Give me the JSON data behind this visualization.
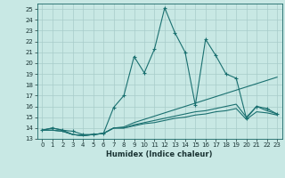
{
  "xlabel": "Humidex (Indice chaleur)",
  "xlim": [
    -0.5,
    23.5
  ],
  "ylim": [
    13,
    25.5
  ],
  "yticks": [
    13,
    14,
    15,
    16,
    17,
    18,
    19,
    20,
    21,
    22,
    23,
    24,
    25
  ],
  "xticks": [
    0,
    1,
    2,
    3,
    4,
    5,
    6,
    7,
    8,
    9,
    10,
    11,
    12,
    13,
    14,
    15,
    16,
    17,
    18,
    19,
    20,
    21,
    22,
    23
  ],
  "bg_color": "#c8e8e4",
  "grid_color": "#a8ccca",
  "line_color": "#1a7070",
  "lines": [
    {
      "x": [
        0,
        1,
        2,
        3,
        4,
        5,
        6,
        7,
        8,
        9,
        10,
        11,
        12,
        13,
        14,
        15,
        16,
        17,
        18,
        19,
        20,
        21,
        22,
        23
      ],
      "y": [
        13.8,
        14.0,
        13.8,
        13.7,
        13.4,
        13.4,
        13.5,
        15.9,
        17.0,
        20.6,
        19.1,
        21.3,
        25.1,
        22.8,
        21.0,
        16.1,
        22.2,
        20.7,
        19.0,
        18.6,
        14.9,
        16.0,
        15.8,
        15.3
      ],
      "marker": true
    },
    {
      "x": [
        0,
        1,
        2,
        3,
        4,
        5,
        6,
        7,
        8,
        9,
        10,
        11,
        12,
        13,
        14,
        15,
        16,
        17,
        18,
        19,
        20,
        21,
        22,
        23
      ],
      "y": [
        13.8,
        14.0,
        13.8,
        13.4,
        13.3,
        13.4,
        13.5,
        14.0,
        14.1,
        14.5,
        14.8,
        15.1,
        15.4,
        15.7,
        16.0,
        16.3,
        16.6,
        16.9,
        17.2,
        17.5,
        17.8,
        18.1,
        18.4,
        18.7
      ],
      "marker": false
    },
    {
      "x": [
        0,
        1,
        2,
        3,
        4,
        5,
        6,
        7,
        8,
        9,
        10,
        11,
        12,
        13,
        14,
        15,
        16,
        17,
        18,
        19,
        20,
        21,
        22,
        23
      ],
      "y": [
        13.8,
        13.8,
        13.7,
        13.4,
        13.3,
        13.4,
        13.5,
        14.0,
        14.0,
        14.3,
        14.5,
        14.7,
        14.9,
        15.1,
        15.3,
        15.5,
        15.6,
        15.8,
        16.0,
        16.2,
        15.0,
        16.0,
        15.6,
        15.3
      ],
      "marker": false
    },
    {
      "x": [
        0,
        1,
        2,
        3,
        4,
        5,
        6,
        7,
        8,
        9,
        10,
        11,
        12,
        13,
        14,
        15,
        16,
        17,
        18,
        19,
        20,
        21,
        22,
        23
      ],
      "y": [
        13.8,
        13.8,
        13.7,
        13.4,
        13.3,
        13.4,
        13.5,
        14.0,
        14.0,
        14.2,
        14.4,
        14.5,
        14.7,
        14.9,
        15.0,
        15.2,
        15.3,
        15.5,
        15.6,
        15.8,
        14.8,
        15.5,
        15.4,
        15.2
      ],
      "marker": false
    }
  ]
}
